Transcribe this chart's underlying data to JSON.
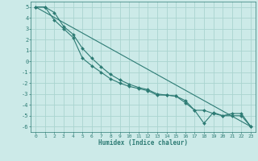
{
  "xlabel": "Humidex (Indice chaleur)",
  "bg_color": "#cceae8",
  "grid_color": "#aad4d0",
  "line_color": "#2d7b74",
  "xlim": [
    -0.5,
    23.5
  ],
  "ylim": [
    -6.5,
    5.5
  ],
  "yticks": [
    5,
    4,
    3,
    2,
    1,
    0,
    -1,
    -2,
    -3,
    -4,
    -5,
    -6
  ],
  "xticks": [
    0,
    1,
    2,
    3,
    4,
    5,
    6,
    7,
    8,
    9,
    10,
    11,
    12,
    13,
    14,
    15,
    16,
    17,
    18,
    19,
    20,
    21,
    22,
    23
  ],
  "line1_x": [
    0,
    1,
    2,
    3,
    4,
    5,
    6,
    7,
    8,
    9,
    10,
    11,
    12,
    13,
    14,
    15,
    16,
    17,
    18,
    19,
    20,
    21,
    22,
    23
  ],
  "line1_y": [
    5.0,
    5.0,
    3.8,
    3.0,
    2.2,
    0.3,
    -0.4,
    -1.0,
    -1.6,
    -2.0,
    -2.3,
    -2.5,
    -2.7,
    -3.1,
    -3.1,
    -3.2,
    -3.6,
    -4.5,
    -5.7,
    -4.7,
    -5.0,
    -4.8,
    -4.8,
    -6.0
  ],
  "line2_x": [
    0,
    1,
    2,
    3,
    4,
    5,
    6,
    7,
    8,
    9,
    10,
    11,
    12,
    13,
    14,
    15,
    16,
    17,
    18,
    19,
    20,
    21,
    22,
    23
  ],
  "line2_y": [
    5.0,
    5.0,
    4.5,
    3.2,
    2.5,
    1.2,
    0.3,
    -0.5,
    -1.2,
    -1.7,
    -2.1,
    -2.4,
    -2.6,
    -3.0,
    -3.1,
    -3.2,
    -3.8,
    -4.5,
    -4.5,
    -4.8,
    -5.0,
    -5.0,
    -5.0,
    -6.0
  ],
  "line3_x": [
    0,
    23
  ],
  "line3_y": [
    5.0,
    -6.0
  ]
}
